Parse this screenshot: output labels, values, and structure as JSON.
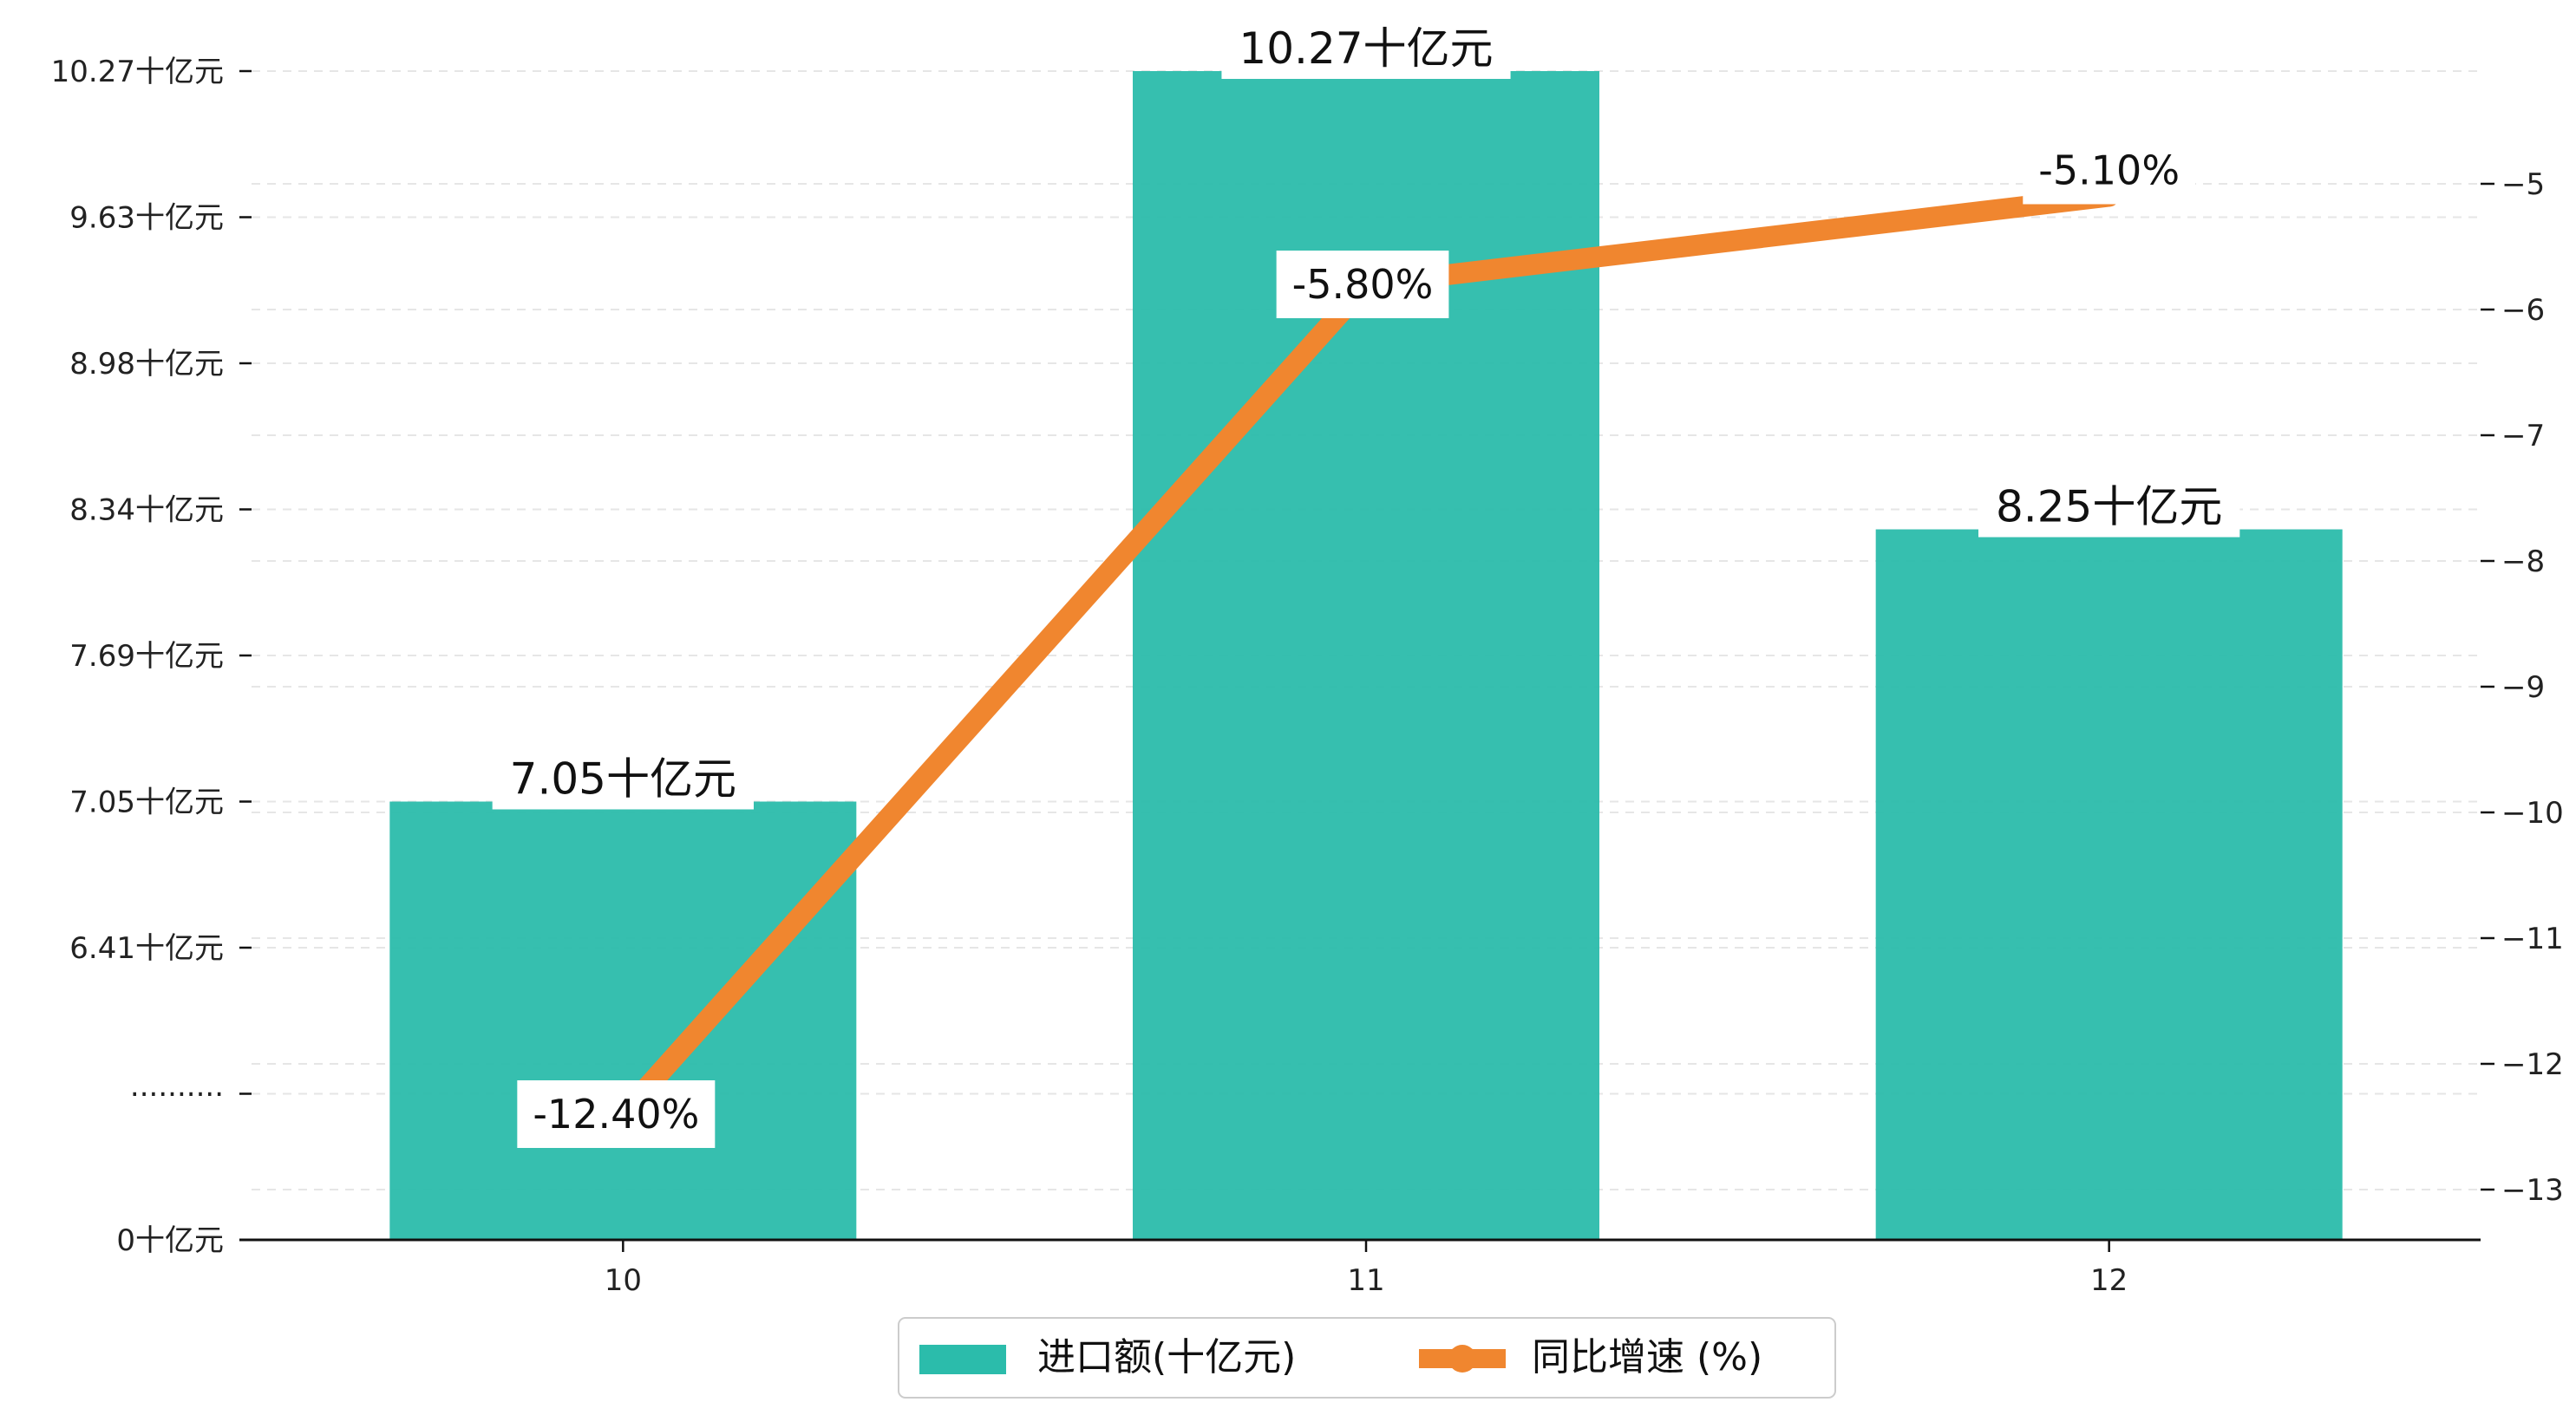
{
  "chart_data": {
    "type": "bar",
    "categories": [
      "10",
      "11",
      "12"
    ],
    "series": [
      {
        "name": "进口额(十亿元)",
        "type": "bar",
        "axis": "left",
        "values": [
          7.05,
          10.27,
          8.25
        ],
        "labels": [
          "7.05十亿元",
          "10.27十亿元",
          "8.25十亿元"
        ],
        "color": "#2bbcab"
      },
      {
        "name": "同比增速 (%)",
        "type": "line",
        "axis": "right",
        "values": [
          -12.4,
          -5.8,
          -5.1
        ],
        "labels": [
          "-12.40%",
          "-5.80%",
          "-5.10%"
        ],
        "color": "#f0862f"
      }
    ],
    "left_axis": {
      "ylim": [
        0,
        10.27
      ],
      "tick_labels": [
        "0十亿元",
        "··········",
        "6.41十亿元",
        "7.05十亿元",
        "7.69十亿元",
        "8.34十亿元",
        "8.98十亿元",
        "9.63十亿元",
        "10.27十亿元"
      ],
      "broken_axis": true
    },
    "right_axis": {
      "ylim": [
        -13.4,
        -4.0
      ],
      "ticks": [
        -13,
        -12,
        -11,
        -10,
        -9,
        -8,
        -7,
        -6,
        -5
      ],
      "tick_labels": [
        "−13",
        "−12",
        "−11",
        "−10",
        "−9",
        "−8",
        "−7",
        "−6",
        "−5"
      ]
    },
    "grid": true,
    "legend_position": "bottom-center"
  }
}
